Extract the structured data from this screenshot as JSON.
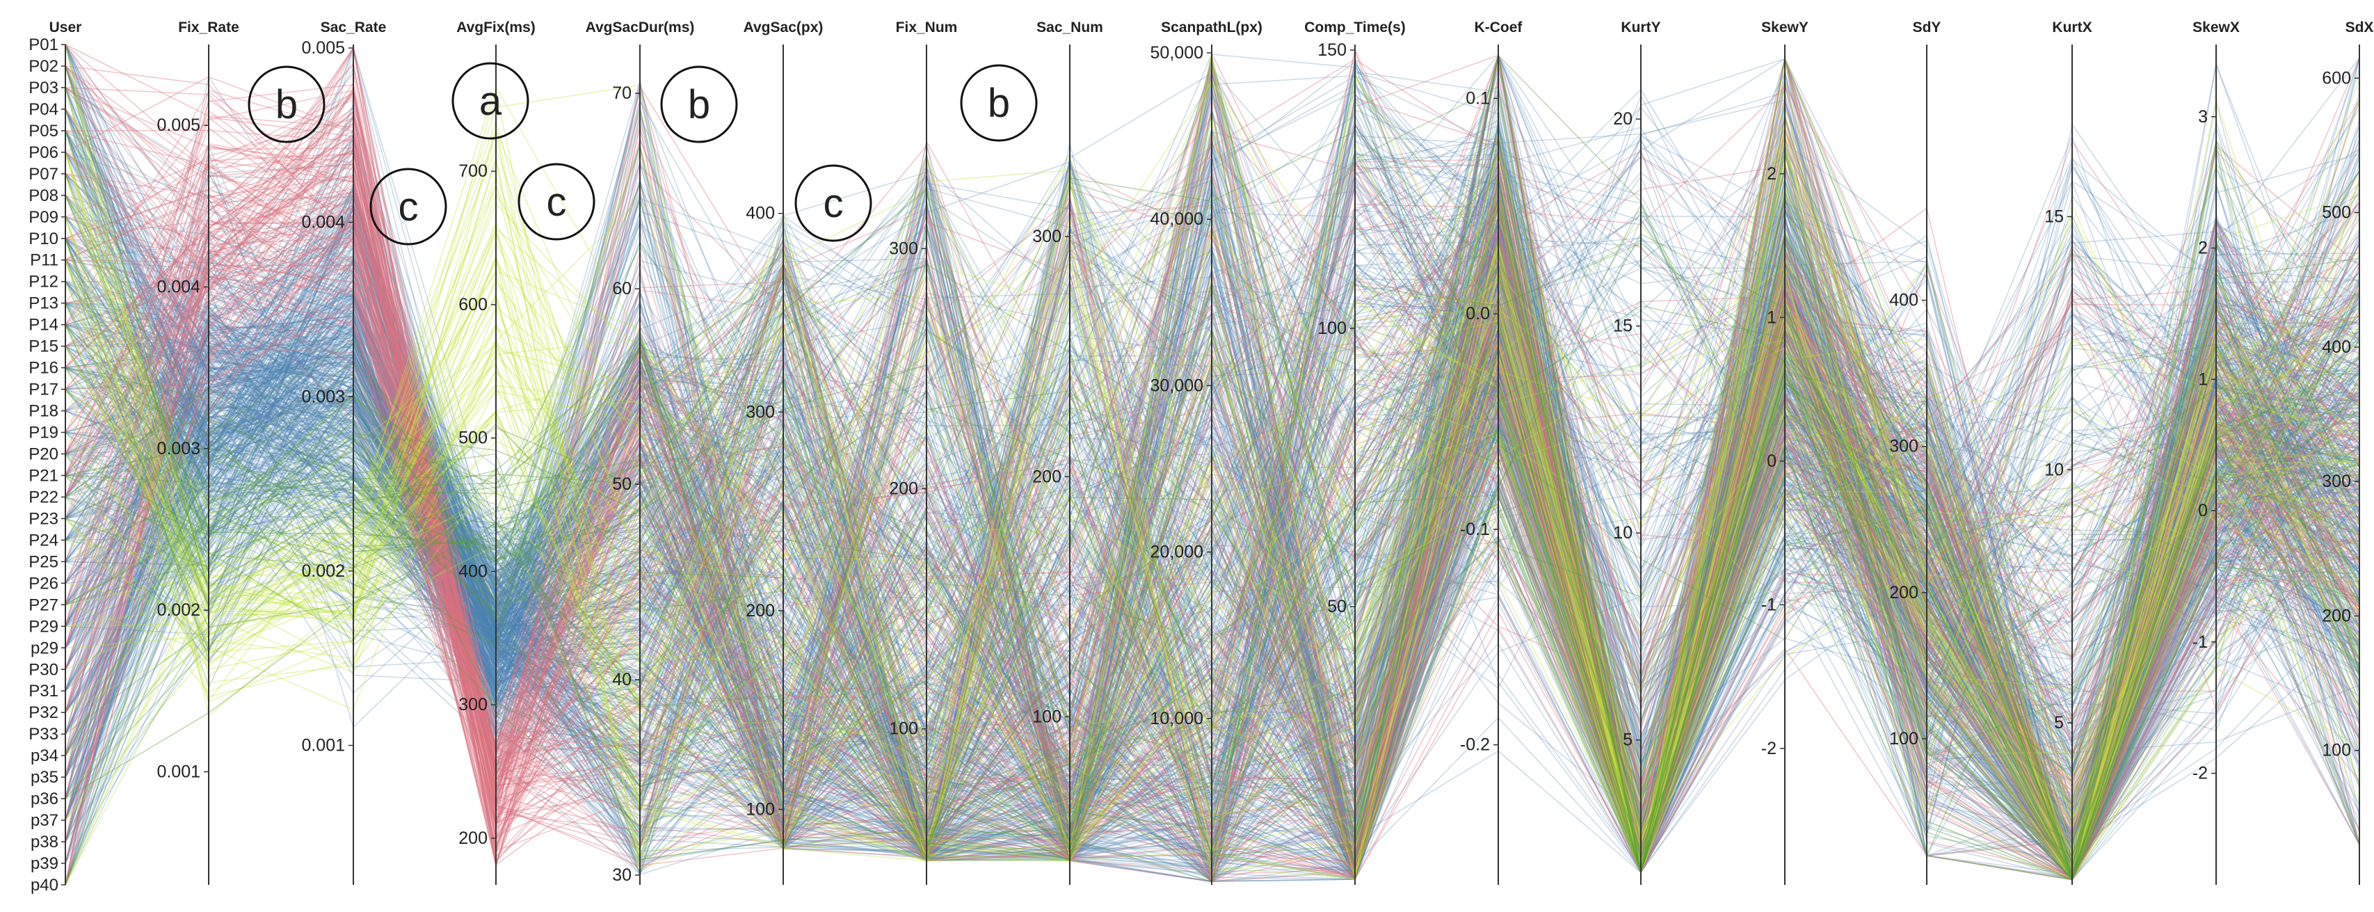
{
  "chart_data": {
    "type": "parallel_coordinates",
    "groups": [
      {
        "name": "blue",
        "color": "#4a83b0"
      },
      {
        "name": "red",
        "color": "#d9717f"
      },
      {
        "name": "yellow-green",
        "color": "#c3e63a"
      },
      {
        "name": "green",
        "color": "#5a9e3a"
      }
    ],
    "users": [
      "P01",
      "P02",
      "P03",
      "P04",
      "P05",
      "P06",
      "P07",
      "P08",
      "P09",
      "P10",
      "P11",
      "P12",
      "P13",
      "P14",
      "P15",
      "P16",
      "P17",
      "P18",
      "P19",
      "P20",
      "P21",
      "P22",
      "P23",
      "P24",
      "P25",
      "P26",
      "P27",
      "P29",
      "p29",
      "P30",
      "P31",
      "P32",
      "P33",
      "p34",
      "p35",
      "p36",
      "p37",
      "p38",
      "p39",
      "p40"
    ],
    "axes": [
      {
        "key": "User",
        "label": "User",
        "type": "categorical"
      },
      {
        "key": "Fix_Rate",
        "label": "Fix_Rate",
        "range": [
          0.0003,
          0.0055
        ],
        "ticks": [
          0.001,
          0.002,
          0.003,
          0.004,
          0.005
        ],
        "tick_labels": [
          "0.001",
          "0.002",
          "0.003",
          "0.004",
          "0.005"
        ]
      },
      {
        "key": "Sac_Rate",
        "label": "Sac_Rate",
        "range": [
          0.0002,
          0.00502
        ],
        "ticks": [
          0.001,
          0.002,
          0.003,
          0.004,
          0.005
        ],
        "tick_labels": [
          "0.001",
          "0.002",
          "0.003",
          "0.004",
          "0.005"
        ]
      },
      {
        "key": "AvgFix",
        "label": "AvgFix(ms)",
        "range": [
          165,
          795
        ],
        "ticks": [
          200,
          300,
          400,
          500,
          600,
          700
        ],
        "tick_labels": [
          "200",
          "300",
          "400",
          "500",
          "600",
          "700"
        ]
      },
      {
        "key": "AvgSacDur",
        "label": "AvgSacDur(ms)",
        "range": [
          29.5,
          72.5
        ],
        "ticks": [
          30,
          40,
          50,
          60,
          70
        ],
        "tick_labels": [
          "30",
          "40",
          "50",
          "60",
          "70"
        ]
      },
      {
        "key": "AvgSac",
        "label": "AvgSac(px)",
        "range": [
          62,
          485
        ],
        "ticks": [
          100,
          200,
          300,
          400
        ],
        "tick_labels": [
          "100",
          "200",
          "300",
          "400"
        ]
      },
      {
        "key": "Fix_Num",
        "label": "Fix_Num",
        "range": [
          35,
          385
        ],
        "ticks": [
          100,
          200,
          300
        ],
        "tick_labels": [
          "100",
          "200",
          "300"
        ]
      },
      {
        "key": "Sac_Num",
        "label": "Sac_Num",
        "range": [
          30,
          380
        ],
        "ticks": [
          100,
          200,
          300
        ],
        "tick_labels": [
          "100",
          "200",
          "300"
        ]
      },
      {
        "key": "ScanpathL",
        "label": "ScanpathL(px)",
        "range": [
          0,
          50500
        ],
        "ticks": [
          10000,
          20000,
          30000,
          40000,
          50000
        ],
        "tick_labels": [
          "10,000",
          "20,000",
          "30,000",
          "40,000",
          "50,000"
        ]
      },
      {
        "key": "Comp_Time",
        "label": "Comp_Time(s)",
        "range": [
          0,
          151
        ],
        "ticks": [
          50,
          100,
          150
        ],
        "tick_labels": [
          "50",
          "100",
          "150"
        ]
      },
      {
        "key": "K_Coef",
        "label": "K-Coef",
        "range": [
          -0.265,
          0.125
        ],
        "ticks": [
          -0.2,
          -0.1,
          0.0,
          0.1
        ],
        "tick_labels": [
          "-0.2",
          "-0.1",
          "0.0",
          "0.1"
        ]
      },
      {
        "key": "KurtY",
        "label": "KurtY",
        "range": [
          1.5,
          21.8
        ],
        "ticks": [
          5,
          10,
          15,
          20
        ],
        "tick_labels": [
          "5",
          "10",
          "15",
          "20"
        ]
      },
      {
        "key": "SkewY",
        "label": "SkewY",
        "range": [
          -2.95,
          2.9
        ],
        "ticks": [
          -2,
          -1,
          0,
          1,
          2
        ],
        "tick_labels": [
          "-2",
          "-1",
          "0",
          "1",
          "2"
        ]
      },
      {
        "key": "SdY",
        "label": "SdY",
        "range": [
          0,
          575
        ],
        "ticks": [
          100,
          200,
          300,
          400
        ],
        "tick_labels": [
          "100",
          "200",
          "300",
          "400"
        ]
      },
      {
        "key": "KurtX",
        "label": "KurtX",
        "range": [
          1.8,
          18.4
        ],
        "ticks": [
          5,
          10,
          15
        ],
        "tick_labels": [
          "5",
          "10",
          "15"
        ]
      },
      {
        "key": "SkewX",
        "label": "SkewX",
        "range": [
          -2.85,
          3.55
        ],
        "ticks": [
          -2,
          -1,
          0,
          1,
          2,
          3
        ],
        "tick_labels": [
          "-2",
          "-1",
          "0",
          "1",
          "2",
          "3"
        ]
      },
      {
        "key": "SdX",
        "label": "SdX",
        "range": [
          0,
          625
        ],
        "ticks": [
          100,
          200,
          300,
          400,
          500,
          600
        ],
        "tick_labels": [
          "100",
          "200",
          "300",
          "400",
          "500",
          "600"
        ]
      }
    ],
    "annotations": [
      {
        "label": "b",
        "near": "between Fix_Rate and Sac_Rate"
      },
      {
        "label": "a",
        "near": "AvgFix(ms)"
      },
      {
        "label": "c",
        "near": "between Sac_Rate and AvgFix(ms)"
      },
      {
        "label": "c",
        "near": "between AvgFix(ms) and AvgSacDur(ms)"
      },
      {
        "label": "b",
        "near": "between AvgSacDur(ms) and AvgSac(px)"
      },
      {
        "label": "c",
        "near": "between AvgSac(px) and Fix_Num"
      },
      {
        "label": "b",
        "near": "between Fix_Num and Sac_Num"
      }
    ]
  }
}
